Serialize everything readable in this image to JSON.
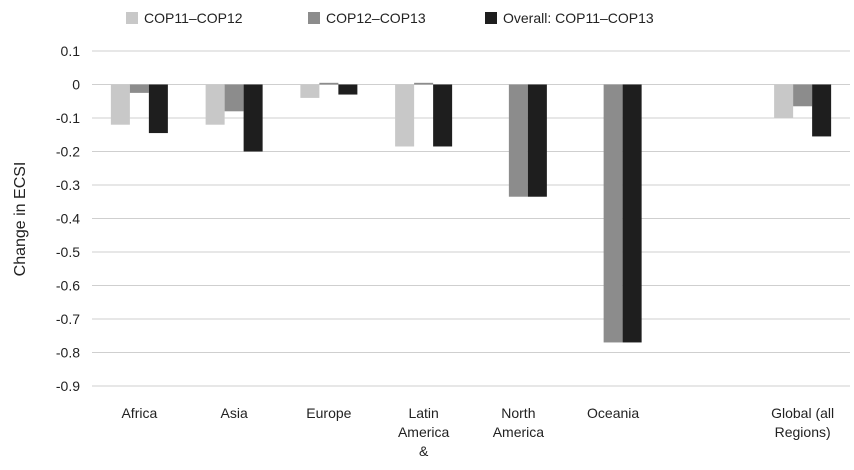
{
  "chart_data": {
    "type": "bar",
    "title": "",
    "xlabel": "",
    "ylabel": "Change in ECSI",
    "ylim": [
      -0.9,
      0.1
    ],
    "yticks": [
      0.1,
      0,
      -0.1,
      -0.2,
      -0.3,
      -0.4,
      -0.5,
      -0.6,
      -0.7,
      -0.8,
      -0.9
    ],
    "ytick_labels": [
      "0.1",
      "0",
      "-0.1",
      "-0.2",
      "-0.3",
      "-0.4",
      "-0.5",
      "-0.6",
      "-0.7",
      "-0.8",
      "-0.9"
    ],
    "grid": true,
    "legend_position": "top",
    "categories": [
      [
        "Africa"
      ],
      [
        "Asia"
      ],
      [
        "Europe"
      ],
      [
        "Latin",
        "America",
        "&"
      ],
      [
        "North",
        "America"
      ],
      [
        "Oceania"
      ],
      [
        "Global (all",
        "Regions)"
      ]
    ],
    "category_slots": [
      0,
      1,
      2,
      3,
      4,
      5,
      7
    ],
    "series": [
      {
        "name": "COP11–COP12",
        "color": "#c8c8c8",
        "values": [
          -0.12,
          -0.12,
          -0.04,
          -0.185,
          0,
          0,
          -0.1
        ]
      },
      {
        "name": "COP12–COP13",
        "color": "#8c8c8c",
        "values": [
          -0.025,
          -0.08,
          0.005,
          0.005,
          -0.335,
          -0.77,
          -0.065
        ]
      },
      {
        "name": "Overall: COP11–COP13",
        "color": "#1e1e1e",
        "values": [
          -0.145,
          -0.2,
          -0.03,
          -0.185,
          -0.335,
          -0.77,
          -0.155
        ]
      }
    ]
  }
}
